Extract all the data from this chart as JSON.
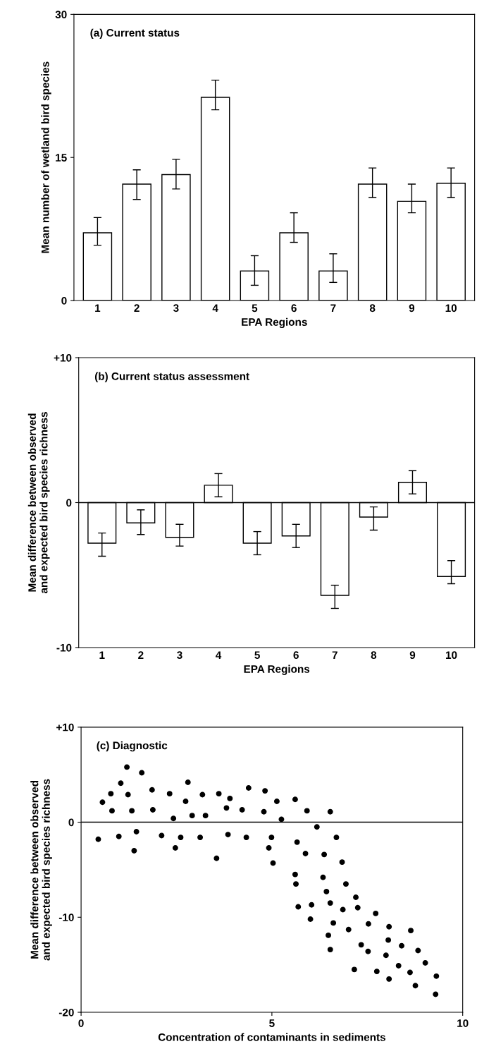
{
  "chart_data": [
    {
      "type": "bar",
      "title": "(a) Current status",
      "xlabel": "EPA Regions",
      "ylabel": "Mean number of wetland bird species",
      "categories": [
        "1",
        "2",
        "3",
        "4",
        "5",
        "6",
        "7",
        "8",
        "9",
        "10"
      ],
      "series": [
        {
          "color": "#ffffff",
          "values": [
            7.1,
            12.2,
            13.2,
            21.3,
            3.1,
            7.1,
            3.1,
            12.2,
            10.4,
            12.3
          ],
          "errors": [
            [
              5.8,
              8.7
            ],
            [
              10.6,
              13.7
            ],
            [
              11.7,
              14.8
            ],
            [
              20.0,
              23.1
            ],
            [
              1.6,
              4.7
            ],
            [
              6.1,
              9.2
            ],
            [
              1.9,
              4.9
            ],
            [
              10.8,
              13.9
            ],
            [
              9.2,
              12.2
            ],
            [
              10.8,
              13.9
            ]
          ]
        }
      ],
      "ylim": [
        0,
        30
      ],
      "yticks": [
        0,
        15,
        30
      ],
      "grid": false
    },
    {
      "type": "bar",
      "title": "(b) Current status assessment",
      "xlabel": "EPA Regions",
      "ylabel": "Mean difference between observed\nand expected bird species richness",
      "categories": [
        "1",
        "2",
        "3",
        "4",
        "5",
        "6",
        "7",
        "8",
        "9",
        "10"
      ],
      "series": [
        {
          "color": "#ffffff",
          "values": [
            -2.8,
            -1.4,
            -2.4,
            1.2,
            -2.8,
            -2.3,
            -6.4,
            -1.0,
            1.4,
            -5.1
          ],
          "errors": [
            [
              -3.7,
              -2.1
            ],
            [
              -2.2,
              -0.5
            ],
            [
              -3.0,
              -1.5
            ],
            [
              0.4,
              2.0
            ],
            [
              -3.6,
              -2.0
            ],
            [
              -3.1,
              -1.5
            ],
            [
              -7.3,
              -5.7
            ],
            [
              -1.9,
              -0.3
            ],
            [
              0.6,
              2.2
            ],
            [
              -5.6,
              -4.0
            ]
          ]
        }
      ],
      "ylim": [
        -10,
        10
      ],
      "yticks": [
        -10,
        0,
        {
          "value": 10,
          "label": "+10"
        }
      ],
      "ref_lines": [
        {
          "axis": "y",
          "value": 0,
          "color": "#000000"
        }
      ],
      "grid": false
    },
    {
      "type": "scatter",
      "title": "(c) Diagnostic",
      "xlabel": "Concentration of contaminants in sediments",
      "ylabel": "Mean difference between observed\nand expected bird species richness",
      "series": [
        {
          "color": "#000000",
          "x": [
            0.45,
            0.56,
            0.78,
            0.81,
            0.99,
            1.04,
            1.2,
            1.23,
            1.33,
            1.39,
            1.45,
            1.59,
            1.86,
            1.88,
            2.11,
            2.32,
            2.42,
            2.47,
            2.61,
            2.74,
            2.8,
            2.91,
            3.12,
            3.18,
            3.26,
            3.55,
            3.61,
            3.85,
            3.81,
            3.9,
            4.22,
            4.33,
            4.39,
            4.79,
            4.82,
            4.99,
            4.92,
            5.03,
            5.13,
            5.61,
            5.92,
            6.53,
            5.25,
            6.18,
            5.66,
            5.88,
            6.37,
            6.69,
            6.84,
            5.61,
            5.63,
            6.34,
            6.94,
            6.43,
            7.2,
            5.69,
            6.04,
            6.53,
            6.86,
            7.25,
            7.72,
            6.01,
            6.61,
            7.53,
            8.07,
            8.64,
            7.01,
            6.48,
            8.05,
            7.34,
            8.4,
            6.53,
            7.52,
            8.83,
            7.99,
            9.02,
            8.32,
            7.16,
            7.75,
            8.62,
            9.31,
            8.07,
            8.76,
            9.29
          ],
          "values": [
            -1.8,
            2.1,
            3.0,
            1.2,
            -1.5,
            4.1,
            5.8,
            2.9,
            1.2,
            -3.0,
            -1.0,
            5.2,
            3.4,
            1.3,
            -1.4,
            3.0,
            0.4,
            -2.7,
            -1.6,
            2.2,
            4.2,
            0.7,
            -1.6,
            2.9,
            0.7,
            -3.8,
            3.0,
            -1.3,
            1.5,
            2.5,
            1.3,
            -1.6,
            3.6,
            1.1,
            3.3,
            -1.6,
            -2.7,
            -4.3,
            2.2,
            2.4,
            1.2,
            1.1,
            0.3,
            -0.5,
            -2.1,
            -3.3,
            -3.4,
            -1.6,
            -4.2,
            -5.5,
            -6.5,
            -5.8,
            -6.5,
            -7.3,
            -7.9,
            -8.9,
            -8.7,
            -8.5,
            -9.2,
            -9.0,
            -9.6,
            -10.2,
            -10.6,
            -10.7,
            -11.0,
            -11.4,
            -11.3,
            -11.9,
            -12.4,
            -12.9,
            -13.0,
            -13.4,
            -13.6,
            -13.5,
            -14.0,
            -14.8,
            -15.1,
            -15.5,
            -15.7,
            -15.8,
            -16.2,
            -16.5,
            -17.2,
            -18.1
          ]
        }
      ],
      "xlim": [
        0,
        10
      ],
      "xticks": [
        0,
        5,
        10
      ],
      "ylim": [
        -20,
        10
      ],
      "yticks": [
        -20,
        -10,
        0,
        {
          "value": 10,
          "label": "+10"
        }
      ],
      "ref_lines": [
        {
          "axis": "y",
          "value": 0,
          "color": "#000000"
        }
      ],
      "marker": "circle",
      "grid": false
    }
  ]
}
